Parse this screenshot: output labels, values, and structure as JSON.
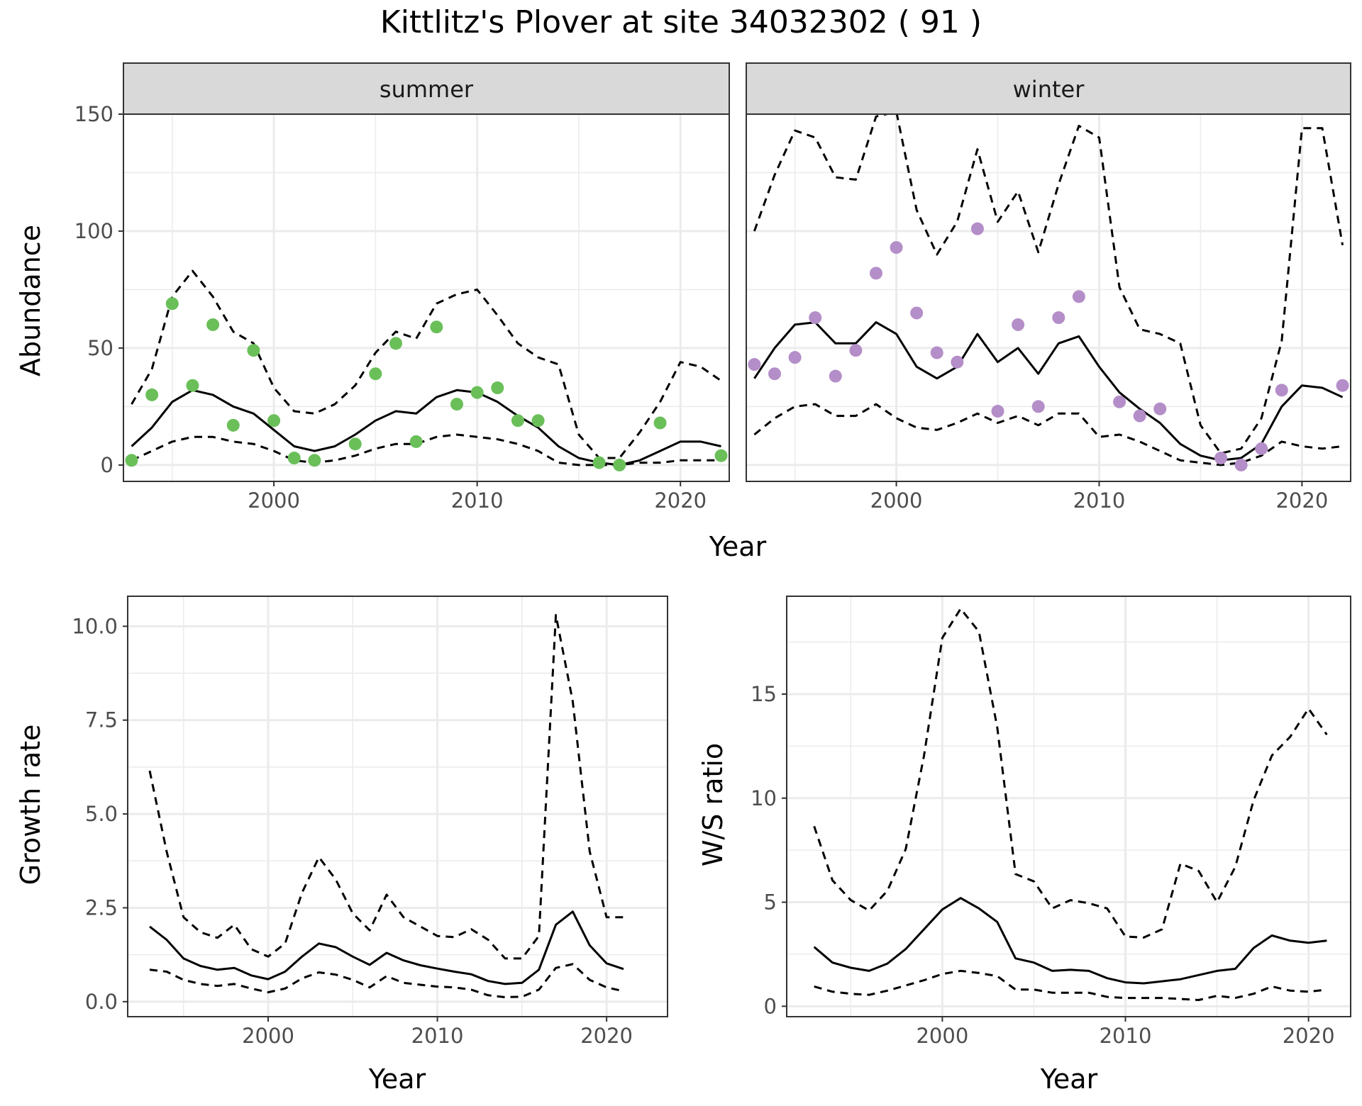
{
  "figure": {
    "title": "Kittlitz's Plover at site 34032302 ( 91 )",
    "colors": {
      "summer_points": "#6abf59",
      "winter_points": "#b48ec8",
      "line": "#000000",
      "panel_border": "#333333",
      "strip_fill": "#d9d9d9",
      "grid": "#ebebeb"
    }
  },
  "chart_data": [
    {
      "type": "line",
      "name": "abundance",
      "title": "",
      "xlabel": "Year",
      "ylabel": "Abundance",
      "xticks": [
        "2000",
        "2010",
        "2020"
      ],
      "yticks": [
        "0",
        "50",
        "100",
        "150"
      ],
      "xlim": [
        1992.6,
        2022.4
      ],
      "ylim": [
        -7,
        150
      ],
      "grid": true,
      "legend": "none",
      "facets": [
        {
          "label": "summer",
          "points": {
            "x": [
              1993,
              1994,
              1995,
              1997,
              1996,
              1998,
              1999,
              2000,
              2001,
              2002,
              2004,
              2005,
              2006,
              2007,
              2008,
              2009,
              2010,
              2011,
              2012,
              2013,
              2016,
              2017,
              2019,
              2022
            ],
            "y": [
              2,
              30,
              69,
              60,
              34,
              17,
              49,
              19,
              3,
              2,
              9,
              39,
              52,
              10,
              59,
              26,
              31,
              33,
              19,
              19,
              1,
              0,
              18,
              4
            ]
          },
          "series": [
            {
              "style": "solid",
              "x": [
                1993,
                1994,
                1995,
                1996,
                1997,
                1998,
                1999,
                2000,
                2001,
                2002,
                2003,
                2004,
                2005,
                2006,
                2007,
                2008,
                2009,
                2010,
                2011,
                2012,
                2013,
                2014,
                2015,
                2016,
                2017,
                2018,
                2019,
                2020,
                2021,
                2022
              ],
              "y": [
                8,
                16,
                27,
                32,
                30,
                25,
                22,
                15,
                8,
                6,
                8,
                13,
                19,
                23,
                22,
                29,
                32,
                31,
                27,
                21,
                16,
                8,
                3,
                1,
                0,
                2,
                6,
                10,
                10,
                8
              ]
            },
            {
              "style": "dashed",
              "x": [
                1993,
                1994,
                1995,
                1996,
                1997,
                1998,
                1999,
                2000,
                2001,
                2002,
                2003,
                2004,
                2005,
                2006,
                2007,
                2008,
                2009,
                2010,
                2011,
                2012,
                2013,
                2014,
                2015,
                2016,
                2017,
                2018,
                2019,
                2020,
                2021,
                2022
              ],
              "y": [
                26,
                41,
                72,
                83,
                72,
                57,
                52,
                33,
                23,
                22,
                26,
                34,
                48,
                57,
                54,
                69,
                73,
                75,
                64,
                52,
                46,
                43,
                13,
                3,
                3,
                14,
                27,
                44,
                42,
                36
              ]
            },
            {
              "style": "dashed",
              "x": [
                1993,
                1994,
                1995,
                1996,
                1997,
                1998,
                1999,
                2000,
                2001,
                2002,
                2003,
                2004,
                2005,
                2006,
                2007,
                2008,
                2009,
                2010,
                2011,
                2012,
                2013,
                2014,
                2015,
                2016,
                2017,
                2018,
                2019,
                2020,
                2021,
                2022
              ],
              "y": [
                2,
                6,
                10,
                12,
                12,
                10,
                9,
                6,
                2,
                1,
                2,
                4,
                7,
                9,
                9,
                12,
                13,
                12,
                11,
                9,
                6,
                1,
                0,
                0,
                0,
                1,
                1,
                2,
                2,
                2
              ]
            }
          ]
        },
        {
          "label": "winter",
          "points": {
            "x": [
              1993,
              1994,
              1995,
              1996,
              1997,
              1998,
              1999,
              2000,
              2001,
              2002,
              2003,
              2004,
              2005,
              2006,
              2007,
              2008,
              2009,
              2011,
              2012,
              2013,
              2016,
              2017,
              2018,
              2019,
              2022
            ],
            "y": [
              43,
              39,
              46,
              63,
              38,
              49,
              82,
              93,
              65,
              48,
              44,
              101,
              23,
              60,
              25,
              63,
              72,
              27,
              21,
              24,
              3,
              0,
              7,
              32,
              34
            ]
          },
          "series": [
            {
              "style": "solid",
              "x": [
                1993,
                1994,
                1995,
                1996,
                1997,
                1998,
                1999,
                2000,
                2001,
                2002,
                2003,
                2004,
                2005,
                2006,
                2007,
                2008,
                2009,
                2010,
                2011,
                2012,
                2013,
                2014,
                2015,
                2016,
                2017,
                2018,
                2019,
                2020,
                2021,
                2022
              ],
              "y": [
                37,
                50,
                60,
                61,
                52,
                52,
                61,
                56,
                42,
                37,
                42,
                56,
                44,
                50,
                39,
                52,
                55,
                42,
                31,
                24,
                18,
                9,
                4,
                2,
                3,
                9,
                25,
                34,
                33,
                29
              ]
            },
            {
              "style": "dashed",
              "x": [
                1993,
                1994,
                1995,
                1996,
                1997,
                1998,
                1999,
                2000,
                2001,
                2002,
                2003,
                2004,
                2005,
                2006,
                2007,
                2008,
                2009,
                2010,
                2011,
                2012,
                2013,
                2014,
                2015,
                2016,
                2017,
                2018,
                2019,
                2020,
                2021,
                2022
              ],
              "y": [
                100,
                124,
                143,
                140,
                123,
                122,
                149,
                151,
                109,
                90,
                104,
                135,
                104,
                117,
                91,
                120,
                145,
                140,
                76,
                58,
                56,
                52,
                17,
                5,
                7,
                20,
                53,
                144,
                144,
                94
              ]
            },
            {
              "style": "dashed",
              "x": [
                1993,
                1994,
                1995,
                1996,
                1997,
                1998,
                1999,
                2000,
                2001,
                2002,
                2003,
                2004,
                2005,
                2006,
                2007,
                2008,
                2009,
                2010,
                2011,
                2012,
                2013,
                2014,
                2015,
                2016,
                2017,
                2018,
                2019,
                2020,
                2021,
                2022
              ],
              "y": [
                13,
                20,
                25,
                26,
                21,
                21,
                26,
                20,
                16,
                15,
                18,
                22,
                18,
                21,
                17,
                22,
                22,
                12,
                13,
                10,
                6,
                2,
                1,
                0,
                1,
                4,
                10,
                8,
                7,
                8
              ]
            }
          ]
        }
      ]
    },
    {
      "type": "line",
      "name": "growth",
      "title": "",
      "xlabel": "Year",
      "ylabel": "Growth rate",
      "xticks": [
        "2000",
        "2010",
        "2020"
      ],
      "yticks": [
        "0.0",
        "2.5",
        "5.0",
        "7.5",
        "10.0"
      ],
      "xlim": [
        1991.7,
        2023.6
      ],
      "ylim": [
        -0.4,
        10.8
      ],
      "grid": true,
      "series": [
        {
          "style": "solid",
          "x": [
            1993,
            1994,
            1995,
            1996,
            1997,
            1998,
            1999,
            2000,
            2001,
            2002,
            2003,
            2004,
            2005,
            2006,
            2007,
            2008,
            2009,
            2010,
            2011,
            2012,
            2013,
            2014,
            2015,
            2016,
            2017,
            2018,
            2019,
            2020,
            2021
          ],
          "y": [
            2.0,
            1.65,
            1.15,
            0.95,
            0.85,
            0.9,
            0.7,
            0.6,
            0.8,
            1.2,
            1.55,
            1.45,
            1.2,
            0.98,
            1.3,
            1.1,
            0.97,
            0.88,
            0.8,
            0.73,
            0.55,
            0.47,
            0.5,
            0.85,
            2.05,
            2.4,
            1.5,
            1.02,
            0.87
          ]
        },
        {
          "style": "dashed",
          "x": [
            1993,
            1994,
            1995,
            1996,
            1997,
            1998,
            1999,
            2000,
            2001,
            2002,
            2003,
            2004,
            2005,
            2006,
            2007,
            2008,
            2009,
            2010,
            2011,
            2012,
            2013,
            2014,
            2015,
            2016,
            2017,
            2018,
            2019,
            2020,
            2021
          ],
          "y": [
            6.15,
            4.0,
            2.25,
            1.85,
            1.7,
            2.05,
            1.4,
            1.2,
            1.55,
            2.9,
            3.85,
            3.25,
            2.35,
            1.9,
            2.85,
            2.25,
            2.0,
            1.75,
            1.72,
            1.93,
            1.65,
            1.15,
            1.15,
            1.75,
            10.3,
            8.0,
            4.0,
            2.25,
            2.25
          ]
        },
        {
          "style": "dashed",
          "x": [
            1993,
            1994,
            1995,
            1996,
            1997,
            1998,
            1999,
            2000,
            2001,
            2002,
            2003,
            2004,
            2005,
            2006,
            2007,
            2008,
            2009,
            2010,
            2011,
            2012,
            2013,
            2014,
            2015,
            2016,
            2017,
            2018,
            2019,
            2020,
            2021
          ],
          "y": [
            0.85,
            0.8,
            0.58,
            0.47,
            0.42,
            0.47,
            0.35,
            0.25,
            0.35,
            0.62,
            0.78,
            0.72,
            0.58,
            0.38,
            0.68,
            0.5,
            0.45,
            0.4,
            0.38,
            0.32,
            0.17,
            0.12,
            0.13,
            0.32,
            0.9,
            1.0,
            0.58,
            0.38,
            0.28
          ]
        }
      ]
    },
    {
      "type": "line",
      "name": "ws",
      "title": "",
      "xlabel": "Year",
      "ylabel": "W/S ratio",
      "xticks": [
        "2000",
        "2010",
        "2020"
      ],
      "yticks": [
        "0",
        "5",
        "10",
        "15"
      ],
      "xlim": [
        1991.5,
        2022.3
      ],
      "ylim": [
        -0.5,
        19.7
      ],
      "grid": true,
      "series": [
        {
          "style": "solid",
          "x": [
            1993,
            1994,
            1995,
            1996,
            1997,
            1998,
            1999,
            2000,
            2001,
            2002,
            2003,
            2004,
            2005,
            2006,
            2007,
            2008,
            2009,
            2010,
            2011,
            2012,
            2013,
            2014,
            2015,
            2016,
            2017,
            2018,
            2019,
            2020,
            2021
          ],
          "y": [
            2.85,
            2.1,
            1.85,
            1.7,
            2.05,
            2.75,
            3.7,
            4.65,
            5.2,
            4.7,
            4.05,
            2.3,
            2.1,
            1.7,
            1.75,
            1.7,
            1.35,
            1.15,
            1.1,
            1.2,
            1.3,
            1.5,
            1.7,
            1.8,
            2.8,
            3.4,
            3.15,
            3.05,
            3.15
          ]
        },
        {
          "style": "dashed",
          "x": [
            1993,
            1994,
            1995,
            1996,
            1997,
            1998,
            1999,
            2000,
            2001,
            2002,
            2003,
            2004,
            2005,
            2006,
            2007,
            2008,
            2009,
            2010,
            2011,
            2012,
            2013,
            2014,
            2015,
            2016,
            2017,
            2018,
            2019,
            2020,
            2021
          ],
          "y": [
            8.65,
            6.05,
            5.1,
            4.6,
            5.55,
            7.55,
            12.05,
            17.7,
            19.1,
            18.0,
            13.4,
            6.35,
            6.0,
            4.7,
            5.1,
            4.95,
            4.7,
            3.35,
            3.3,
            3.7,
            6.85,
            6.5,
            5.0,
            6.7,
            9.9,
            12.05,
            12.95,
            14.3,
            13.05
          ]
        },
        {
          "style": "dashed",
          "x": [
            1993,
            1994,
            1995,
            1996,
            1997,
            1998,
            1999,
            2000,
            2001,
            2002,
            2003,
            2004,
            2005,
            2006,
            2007,
            2008,
            2009,
            2010,
            2011,
            2012,
            2013,
            2014,
            2015,
            2016,
            2017,
            2018,
            2019,
            2020,
            2021
          ],
          "y": [
            0.95,
            0.7,
            0.6,
            0.55,
            0.75,
            1.0,
            1.25,
            1.55,
            1.7,
            1.6,
            1.45,
            0.8,
            0.8,
            0.65,
            0.65,
            0.65,
            0.45,
            0.4,
            0.4,
            0.4,
            0.35,
            0.3,
            0.5,
            0.4,
            0.6,
            0.95,
            0.75,
            0.7,
            0.8
          ]
        }
      ]
    }
  ]
}
